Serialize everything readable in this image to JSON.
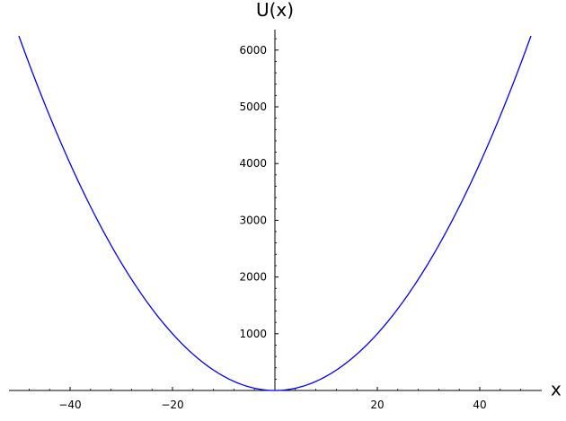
{
  "chart_data": {
    "type": "line",
    "function": "U(x) = 2.5 * x^2",
    "xlabel": "x",
    "ylabel": "U(x)",
    "xlim": [
      -50,
      50
    ],
    "ylim": [
      0,
      6250
    ],
    "x_ticks": [
      -40,
      -20,
      20,
      40
    ],
    "x_tick_labels": [
      "−40",
      "−20",
      "20",
      "40"
    ],
    "x_minor_step": 4,
    "y_ticks": [
      1000,
      2000,
      3000,
      4000,
      5000,
      6000
    ],
    "y_tick_labels": [
      "1000",
      "2000",
      "3000",
      "4000",
      "5000",
      "6000"
    ],
    "y_minor_step": 200,
    "grid": false,
    "legend": "none",
    "series": [
      {
        "color": "#0000ff",
        "x": [
          -50,
          -45,
          -40,
          -35,
          -30,
          -25,
          -20,
          -15,
          -10,
          -5,
          0,
          5,
          10,
          15,
          20,
          25,
          30,
          35,
          40,
          45,
          50
        ],
        "y": [
          6250,
          5062.5,
          4000,
          3062.5,
          2250,
          1562.5,
          1000,
          562.5,
          250,
          62.5,
          0,
          62.5,
          250,
          562.5,
          1000,
          1562.5,
          2250,
          3062.5,
          4000,
          5062.5,
          6250
        ]
      }
    ]
  }
}
